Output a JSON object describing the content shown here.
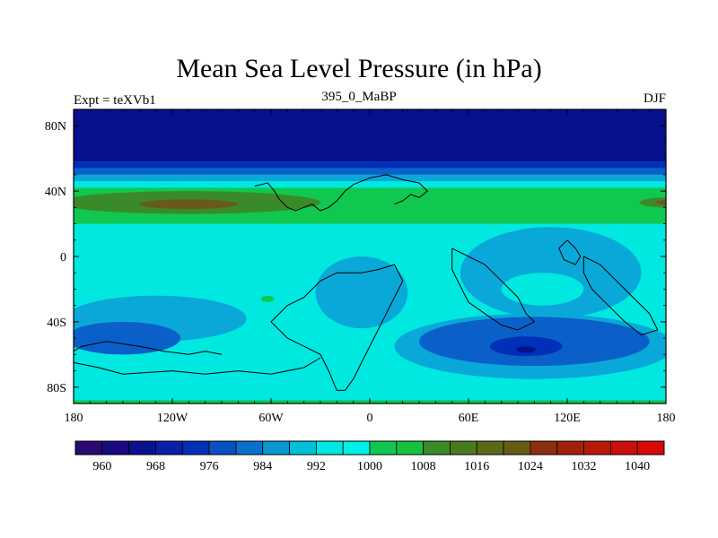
{
  "title": "Mean Sea Level Pressure (in hPa)",
  "subtitle": "395_0_MaBP",
  "left_label": "Expt = teXVb1",
  "right_label": "DJF",
  "map": {
    "projection": "cylindrical equidistant",
    "lon_range": [
      -180,
      180
    ],
    "lat_range": [
      -90,
      90
    ],
    "lon_ticks": [
      {
        "value": -180,
        "label": "180"
      },
      {
        "value": -120,
        "label": "120W"
      },
      {
        "value": -60,
        "label": "60W"
      },
      {
        "value": 0,
        "label": "0"
      },
      {
        "value": 60,
        "label": "60E"
      },
      {
        "value": 120,
        "label": "120E"
      },
      {
        "value": 180,
        "label": "180"
      }
    ],
    "lat_ticks": [
      {
        "value": 80,
        "label": "80N"
      },
      {
        "value": 40,
        "label": "40N"
      },
      {
        "value": 0,
        "label": "0"
      },
      {
        "value": -40,
        "label": "40S"
      },
      {
        "value": -80,
        "label": "80S"
      }
    ],
    "background_fill": "#00e8e0",
    "zones": [
      {
        "name": "polar-low-north",
        "lat_min": 58,
        "lat_max": 90,
        "color": "#08108e"
      },
      {
        "name": "north-ring-976",
        "lat_min": 54,
        "lat_max": 58,
        "color": "#0030b8"
      },
      {
        "name": "north-ring-984",
        "lat_min": 50,
        "lat_max": 54,
        "color": "#0a60c8"
      },
      {
        "name": "north-ring-992",
        "lat_min": 46,
        "lat_max": 50,
        "color": "#0aa8d8"
      },
      {
        "name": "north-band-1000",
        "lat_min": 42,
        "lat_max": 46,
        "color": "#00e8e0"
      },
      {
        "name": "subtropical-high-1008",
        "lat_min": 20,
        "lat_max": 42,
        "color": "#10c850"
      },
      {
        "name": "south-pole-edge",
        "lat_min": -90,
        "lat_max": -88,
        "color": "#10c850"
      }
    ],
    "blobs": [
      {
        "name": "high-1016-atlantic",
        "lon": -110,
        "lat": 33,
        "rlon": 80,
        "rlat": 7,
        "color": "#3a8a2a"
      },
      {
        "name": "high-1024-atlantic",
        "lon": -110,
        "lat": 32,
        "rlon": 30,
        "rlat": 3,
        "color": "#6a5a1a"
      },
      {
        "name": "high-1016-pacific-edge",
        "lon": 178,
        "lat": 33,
        "rlon": 14,
        "rlat": 3,
        "color": "#3a8a2a"
      },
      {
        "name": "high-1024-pacific-edge",
        "lon": 180,
        "lat": 33,
        "rlon": 6,
        "rlat": 1.5,
        "color": "#6a5a1a"
      },
      {
        "name": "small-1008-cell",
        "lon": -62,
        "lat": -26,
        "rlon": 4,
        "rlat": 2,
        "color": "#10c850"
      },
      {
        "name": "low-992-south-pacific",
        "lon": -130,
        "lat": -38,
        "rlon": 55,
        "rlat": 14,
        "color": "#0aa8d8"
      },
      {
        "name": "low-992-central",
        "lon": -5,
        "lat": -22,
        "rlon": 28,
        "rlat": 22,
        "color": "#0aa8d8"
      },
      {
        "name": "low-992-east",
        "lon": 110,
        "lat": -10,
        "rlon": 55,
        "rlat": 28,
        "color": "#0aa8d8"
      },
      {
        "name": "low-992-southern-ocean",
        "lon": 100,
        "lat": -55,
        "rlon": 85,
        "rlat": 20,
        "color": "#0aa8d8"
      },
      {
        "name": "low-984-southern-ocean",
        "lon": 100,
        "lat": -52,
        "rlon": 70,
        "rlat": 15,
        "color": "#0a60c8"
      },
      {
        "name": "low-984-pacific",
        "lon": -150,
        "lat": -50,
        "rlon": 35,
        "rlat": 10,
        "color": "#0a60c8"
      },
      {
        "name": "low-976-core",
        "lon": 95,
        "lat": -55,
        "rlon": 22,
        "rlat": 6,
        "color": "#0030b8"
      },
      {
        "name": "low-968-center",
        "lon": 95,
        "lat": -57,
        "rlon": 6,
        "rlat": 2,
        "color": "#08108e"
      },
      {
        "name": "inner-1000-east",
        "lon": 105,
        "lat": -20,
        "rlon": 25,
        "rlat": 10,
        "color": "#00e8e0"
      }
    ],
    "coastlines": [
      [
        [
          -70,
          43
        ],
        [
          -62,
          45
        ],
        [
          -58,
          40
        ],
        [
          -55,
          35
        ],
        [
          -50,
          30
        ],
        [
          -45,
          28
        ],
        [
          -40,
          30
        ],
        [
          -35,
          32
        ],
        [
          -30,
          28
        ],
        [
          -25,
          30
        ],
        [
          -20,
          34
        ],
        [
          -15,
          40
        ],
        [
          -10,
          44
        ],
        [
          -5,
          46
        ],
        [
          0,
          48
        ],
        [
          10,
          50
        ],
        [
          20,
          47
        ],
        [
          30,
          45
        ],
        [
          35,
          40
        ],
        [
          30,
          36
        ],
        [
          25,
          38
        ],
        [
          20,
          34
        ],
        [
          15,
          32
        ]
      ],
      [
        [
          -5,
          -10
        ],
        [
          5,
          -8
        ],
        [
          15,
          -5
        ],
        [
          20,
          -15
        ],
        [
          15,
          -25
        ],
        [
          10,
          -35
        ],
        [
          5,
          -45
        ],
        [
          0,
          -55
        ],
        [
          -5,
          -65
        ],
        [
          -10,
          -75
        ],
        [
          -15,
          -82
        ],
        [
          -20,
          -82
        ],
        [
          -25,
          -70
        ],
        [
          -30,
          -60
        ],
        [
          -40,
          -55
        ],
        [
          -50,
          -50
        ],
        [
          -55,
          -45
        ],
        [
          -60,
          -40
        ],
        [
          -50,
          -30
        ],
        [
          -40,
          -25
        ],
        [
          -30,
          -15
        ],
        [
          -20,
          -10
        ],
        [
          -5,
          -10
        ]
      ],
      [
        [
          -90,
          -60
        ],
        [
          -100,
          -58
        ],
        [
          -110,
          -60
        ],
        [
          -125,
          -58
        ],
        [
          -140,
          -55
        ],
        [
          -160,
          -52
        ],
        [
          -175,
          -55
        ],
        [
          -180,
          -58
        ]
      ],
      [
        [
          -180,
          -65
        ],
        [
          -165,
          -68
        ],
        [
          -150,
          -72
        ],
        [
          -120,
          -70
        ],
        [
          -100,
          -72
        ],
        [
          -80,
          -70
        ],
        [
          -60,
          -72
        ],
        [
          -40,
          -68
        ],
        [
          -30,
          -62
        ]
      ],
      [
        [
          50,
          5
        ],
        [
          60,
          0
        ],
        [
          70,
          -5
        ],
        [
          80,
          -15
        ],
        [
          90,
          -25
        ],
        [
          95,
          -35
        ],
        [
          100,
          -40
        ],
        [
          90,
          -45
        ],
        [
          80,
          -42
        ],
        [
          70,
          -35
        ],
        [
          60,
          -28
        ],
        [
          55,
          -18
        ],
        [
          50,
          -8
        ],
        [
          50,
          5
        ]
      ],
      [
        [
          130,
          0
        ],
        [
          140,
          -5
        ],
        [
          150,
          -15
        ],
        [
          160,
          -25
        ],
        [
          170,
          -35
        ],
        [
          175,
          -45
        ],
        [
          165,
          -48
        ],
        [
          155,
          -40
        ],
        [
          145,
          -30
        ],
        [
          135,
          -20
        ],
        [
          130,
          -10
        ],
        [
          130,
          0
        ]
      ],
      [
        [
          120,
          10
        ],
        [
          125,
          5
        ],
        [
          128,
          0
        ],
        [
          125,
          -5
        ],
        [
          118,
          -2
        ],
        [
          115,
          5
        ],
        [
          120,
          10
        ]
      ]
    ],
    "frame_color": "#000000",
    "coastline_color": "#000000"
  },
  "colorbar": {
    "labels": [
      "960",
      "968",
      "976",
      "984",
      "992",
      "1000",
      "1008",
      "1016",
      "1024",
      "1032",
      "1040"
    ],
    "colors": [
      "#2a0a70",
      "#1a0a80",
      "#0a108e",
      "#0a20a8",
      "#0030b8",
      "#0a50c0",
      "#0a70c8",
      "#0a98d0",
      "#00c0d8",
      "#00e8e0",
      "#00f0e8",
      "#10c850",
      "#18c040",
      "#3a8a2a",
      "#4a7a20",
      "#5a6a1a",
      "#6a5a18",
      "#8a3010",
      "#a02008",
      "#b81808",
      "#c81008",
      "#d80808"
    ]
  }
}
